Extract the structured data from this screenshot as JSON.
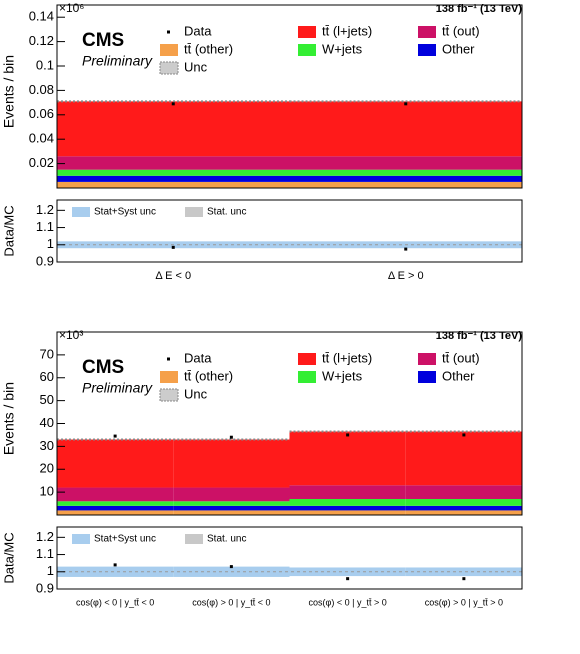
{
  "chart_data": [
    {
      "type": "stacked_bar",
      "title": "CMS",
      "subtitle": "Preliminary",
      "lumi": "138 fb⁻¹ (13 TeV)",
      "y_multiplier": "×10⁶",
      "y_label": "Events / bin",
      "ratio_label": "Data/MC",
      "categories": [
        "Δ E < 0",
        "Δ E > 0"
      ],
      "series": [
        {
          "name": "tt̄ (other)",
          "color": "#f5a04a",
          "values": [
            0.005,
            0.005
          ]
        },
        {
          "name": "Other",
          "color": "#0000dd",
          "values": [
            0.005,
            0.005
          ]
        },
        {
          "name": "W+jets",
          "color": "#33ee33",
          "values": [
            0.005,
            0.005
          ]
        },
        {
          "name": "tt̄ (out)",
          "color": "#cc1166",
          "values": [
            0.011,
            0.011
          ]
        },
        {
          "name": "tt̄ (l+jets)",
          "color": "#ff1a1a",
          "values": [
            0.045,
            0.045
          ]
        }
      ],
      "data_name": "Data",
      "data": [
        0.069,
        0.069
      ],
      "unc_name": "Unc",
      "ylim": [
        0,
        0.15
      ],
      "yticks": [
        0.02,
        0.04,
        0.06,
        0.08,
        0.1,
        0.12,
        0.14
      ],
      "ratio": [
        0.985,
        0.975
      ],
      "ratio_unc": [
        0.02,
        0.02
      ],
      "ratio_unc_name": "Stat+Syst unc",
      "ratio_stat_name": "Stat. unc",
      "ratio_ylim": [
        0.9,
        1.26
      ],
      "ratio_yticks": [
        0.9,
        1,
        1.1,
        1.2
      ]
    },
    {
      "type": "stacked_bar",
      "title": "CMS",
      "subtitle": "Preliminary",
      "lumi": "138 fb⁻¹ (13 TeV)",
      "y_multiplier": "×10³",
      "y_label": "Events / bin",
      "ratio_label": "Data/MC",
      "categories": [
        "cos(φ) < 0 | y_tt̄ < 0",
        "cos(φ) > 0 | y_tt̄ < 0",
        "cos(φ) < 0 | y_tt̄ > 0",
        "cos(φ) > 0 | y_tt̄ > 0"
      ],
      "series": [
        {
          "name": "tt̄ (other)",
          "color": "#f5a04a",
          "values": [
            2,
            2,
            2,
            2
          ]
        },
        {
          "name": "Other",
          "color": "#0000dd",
          "values": [
            2,
            2,
            2,
            2
          ]
        },
        {
          "name": "W+jets",
          "color": "#33ee33",
          "values": [
            2,
            2,
            3,
            3
          ]
        },
        {
          "name": "tt̄ (out)",
          "color": "#cc1166",
          "values": [
            6,
            6,
            6,
            6
          ]
        },
        {
          "name": "tt̄ (l+jets)",
          "color": "#ff1a1a",
          "values": [
            21,
            21,
            23.5,
            23.5
          ]
        }
      ],
      "data_name": "Data",
      "data": [
        34.5,
        34,
        35,
        35
      ],
      "unc_name": "Unc",
      "ylim": [
        0,
        80
      ],
      "yticks": [
        10,
        20,
        30,
        40,
        50,
        60,
        70
      ],
      "ratio": [
        1.04,
        1.03,
        0.96,
        0.96
      ],
      "ratio_unc": [
        0.03,
        0.03,
        0.025,
        0.025
      ],
      "ratio_unc_name": "Stat+Syst unc",
      "ratio_stat_name": "Stat. unc",
      "ratio_ylim": [
        0.9,
        1.26
      ],
      "ratio_yticks": [
        0.9,
        1,
        1.1,
        1.2
      ]
    }
  ]
}
